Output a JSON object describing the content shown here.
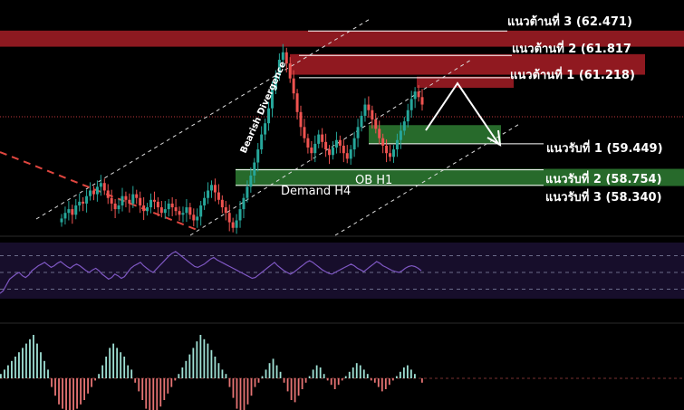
{
  "chart_data": {
    "type": "candlestick",
    "price_axis": {
      "ylim": [
        57.0,
        63.3
      ]
    },
    "resistance_levels": [
      {
        "label": "แนวต้านที่ 3 (62.471)",
        "value": 62.471
      },
      {
        "label": "แนวต้านที่ 2 (61.817",
        "value": 61.817
      },
      {
        "label": "แนวต้านที่ 1 (61.218)",
        "value": 61.218
      }
    ],
    "support_levels": [
      {
        "label": "แนวรับที่ 1 (59.449)",
        "value": 59.449
      },
      {
        "label": "แนวรับที่ 2 (58.754)",
        "value": 58.754
      },
      {
        "label": "แนวรับที่ 3 (58.340)",
        "value": 58.34
      }
    ],
    "zones": [
      {
        "label": "Demand H4",
        "low": 58.32,
        "high": 58.78,
        "color": "#2e7d32"
      },
      {
        "label": "OB H1",
        "low": 59.45,
        "high": 59.95,
        "color": "#2e7d32"
      },
      {
        "label": "",
        "low": 62.05,
        "high": 62.48,
        "color": "#9b1c24"
      },
      {
        "label": "",
        "low": 61.3,
        "high": 61.85,
        "color": "#a01c24"
      }
    ],
    "annotations": [
      {
        "text": "Bearish Divergence"
      }
    ],
    "series": [
      {
        "name": "price",
        "closes": [
          57.45,
          57.6,
          57.7,
          57.55,
          57.8,
          57.9,
          57.85,
          58.05,
          58.2,
          58.1,
          58.3,
          58.4,
          58.2,
          58.0,
          57.85,
          57.7,
          57.8,
          58.05,
          57.95,
          57.85,
          58.1,
          58.0,
          57.8,
          57.65,
          57.75,
          57.95,
          57.9,
          57.75,
          57.6,
          57.7,
          57.85,
          57.75,
          57.65,
          57.55,
          57.6,
          57.75,
          57.55,
          57.4,
          57.5,
          57.8,
          58.0,
          58.2,
          58.35,
          58.15,
          57.95,
          57.75,
          57.6,
          57.35,
          57.2,
          57.4,
          57.7,
          58.0,
          58.3,
          58.6,
          58.95,
          59.3,
          59.7,
          60.0,
          60.4,
          60.9,
          61.3,
          61.7,
          61.9,
          61.6,
          61.2,
          60.8,
          60.3,
          59.9,
          59.6,
          59.35,
          59.2,
          59.45,
          59.7,
          59.5,
          59.3,
          59.15,
          59.35,
          59.55,
          59.4,
          59.2,
          59.05,
          59.3,
          59.6,
          59.9,
          60.2,
          60.5,
          60.35,
          60.1,
          59.85,
          59.6,
          59.4,
          59.2,
          59.1,
          59.3,
          59.55,
          59.8,
          60.05,
          60.35,
          60.65,
          60.85,
          60.7,
          60.5
        ]
      }
    ],
    "rsi": {
      "values": [
        25,
        28,
        35,
        42,
        45,
        48,
        50,
        46,
        44,
        47,
        52,
        55,
        58,
        60,
        62,
        59,
        56,
        58,
        61,
        63,
        60,
        57,
        55,
        58,
        60,
        58,
        55,
        52,
        50,
        53,
        55,
        52,
        48,
        45,
        42,
        44,
        48,
        46,
        43,
        45,
        50,
        55,
        58,
        60,
        62,
        58,
        55,
        52,
        50,
        54,
        58,
        62,
        66,
        70,
        73,
        75,
        72,
        69,
        66,
        63,
        60,
        57,
        56,
        58,
        60,
        63,
        66,
        68,
        65,
        63,
        61,
        59,
        57,
        55,
        53,
        51,
        49,
        47,
        45,
        43,
        44,
        47,
        50,
        53,
        56,
        59,
        62,
        58,
        55,
        52,
        50,
        48,
        50,
        53,
        56,
        59,
        62,
        64,
        62,
        59,
        56,
        53,
        51,
        49,
        48,
        50,
        52,
        54,
        56,
        58,
        60,
        58,
        55,
        53,
        51,
        54,
        57,
        60,
        63,
        61,
        58,
        56,
        54,
        52,
        51,
        50,
        52,
        55,
        57,
        58,
        57,
        55,
        52
      ],
      "levels": [
        70,
        50,
        30
      ]
    },
    "macd_histogram": {
      "values": [
        0.1,
        0.2,
        0.3,
        0.4,
        0.5,
        0.6,
        0.7,
        0.8,
        0.9,
        1.0,
        0.8,
        0.6,
        0.4,
        0.2,
        -0.2,
        -0.4,
        -0.6,
        -0.7,
        -0.8,
        -0.9,
        -0.8,
        -0.7,
        -0.6,
        -0.5,
        -0.35,
        -0.2,
        -0.05,
        0.1,
        0.3,
        0.5,
        0.7,
        0.8,
        0.7,
        0.6,
        0.5,
        0.3,
        0.2,
        -0.1,
        -0.3,
        -0.5,
        -0.7,
        -0.85,
        -0.95,
        -0.8,
        -0.65,
        -0.5,
        -0.35,
        -0.2,
        -0.05,
        0.1,
        0.25,
        0.4,
        0.55,
        0.7,
        0.85,
        1.0,
        0.9,
        0.8,
        0.65,
        0.5,
        0.35,
        0.2,
        0.1,
        -0.2,
        -0.45,
        -0.7,
        -0.9,
        -0.8,
        -0.6,
        -0.4,
        -0.2,
        -0.1,
        0.05,
        0.2,
        0.35,
        0.45,
        0.3,
        0.15,
        -0.1,
        -0.3,
        -0.5,
        -0.55,
        -0.4,
        -0.25,
        -0.1,
        0.05,
        0.2,
        0.3,
        0.25,
        0.1,
        -0.05,
        -0.15,
        -0.25,
        -0.15,
        -0.05,
        0.05,
        0.15,
        0.25,
        0.35,
        0.3,
        0.2,
        0.1,
        -0.05,
        -0.1,
        -0.2,
        -0.3,
        -0.25,
        -0.15,
        -0.05,
        0.05,
        0.15,
        0.25,
        0.3,
        0.2,
        0.1,
        0.0,
        -0.1
      ]
    }
  }
}
